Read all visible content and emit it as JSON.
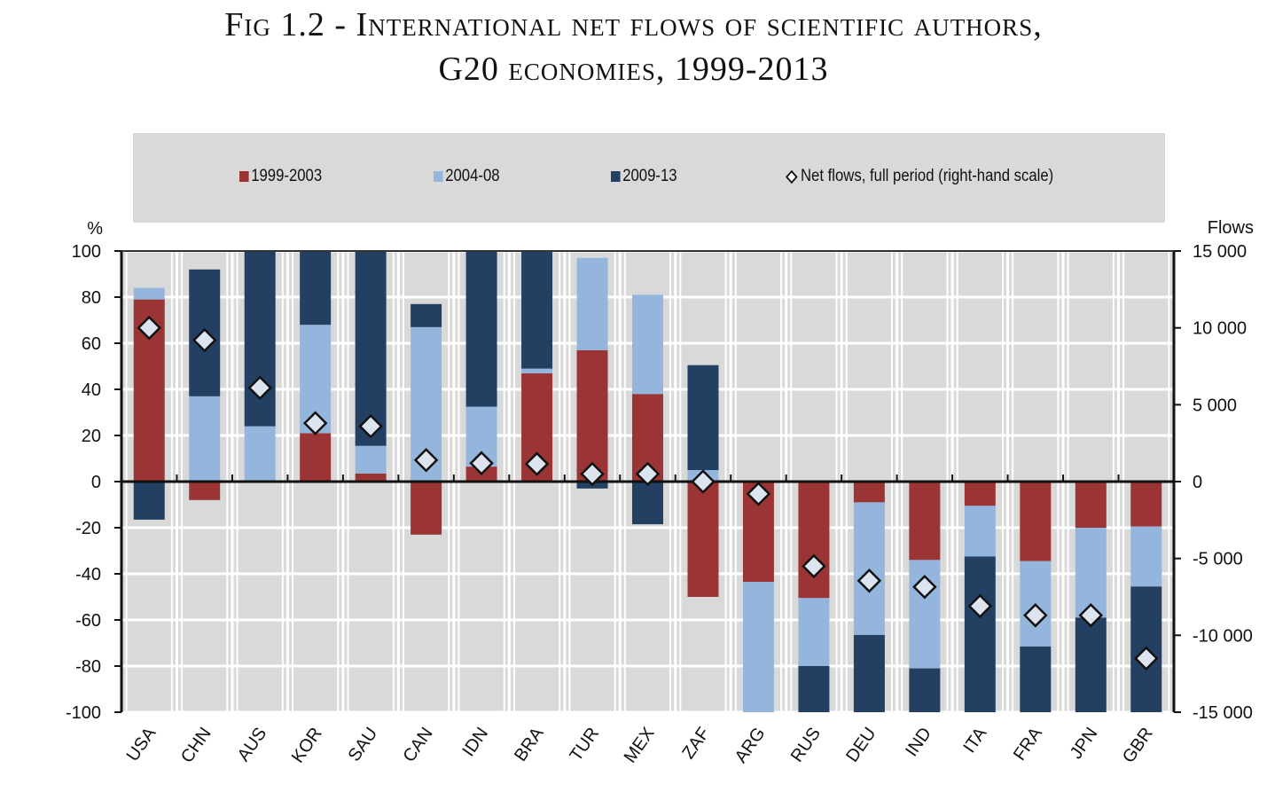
{
  "chart_data": {
    "type": "bar",
    "stacked": true,
    "title": "Fig 1.2 -  International net flows of scientific authors,",
    "subtitle": "G20 economies, 1999-2013",
    "ylabel": "%",
    "y2label": "Flows",
    "ylim": [
      -100,
      100
    ],
    "y2lim": [
      -15000,
      15000
    ],
    "yticks": [
      100,
      80,
      60,
      40,
      20,
      0,
      -20,
      -40,
      -60,
      -80,
      -100
    ],
    "y2ticks": [
      15000,
      10000,
      5000,
      0,
      -5000,
      -10000,
      -15000
    ],
    "y2tick_labels": [
      "15 000",
      "10 000",
      "5 000",
      "0",
      "-5 000",
      "-10 000",
      "-15 000"
    ],
    "grid": true,
    "legend_position": "top",
    "categories": [
      "USA",
      "CHN",
      "AUS",
      "KOR",
      "SAU",
      "CAN",
      "IDN",
      "BRA",
      "TUR",
      "MEX",
      "ZAF",
      "ARG",
      "RUS",
      "DEU",
      "IND",
      "ITA",
      "FRA",
      "JPN",
      "GBR"
    ],
    "series": [
      {
        "name": "1999-2003",
        "color": "#9b3535",
        "values": [
          79,
          -8,
          0,
          21,
          3.5,
          -23,
          6.5,
          47,
          57,
          38,
          -50,
          -43.5,
          -50.5,
          -9,
          -34,
          -10.5,
          -34.5,
          -20,
          -19.5
        ]
      },
      {
        "name": "2004-08",
        "color": "#95b6dc",
        "values": [
          5,
          37,
          24,
          47,
          12,
          67,
          26,
          2,
          40,
          43,
          5,
          -56.5,
          -29.5,
          -57.5,
          -47,
          -22,
          -37,
          -39,
          -26
        ]
      },
      {
        "name": "2009-13",
        "color": "#233f62",
        "values": [
          -16.5,
          55,
          76,
          32,
          84.5,
          10,
          67.5,
          51,
          -3,
          -18.5,
          45.5,
          0,
          -20,
          -33.5,
          -19,
          -67.5,
          -28.5,
          -41,
          -54.5
        ]
      }
    ],
    "net_flows": {
      "name": "Net flows, full period (right-hand scale)",
      "marker": "diamond",
      "values": [
        10000,
        9200,
        6100,
        3800,
        3600,
        1400,
        1200,
        1150,
        500,
        500,
        0,
        -800,
        -5500,
        -6450,
        -6850,
        -8100,
        -8700,
        -8700,
        -11500
      ]
    }
  }
}
